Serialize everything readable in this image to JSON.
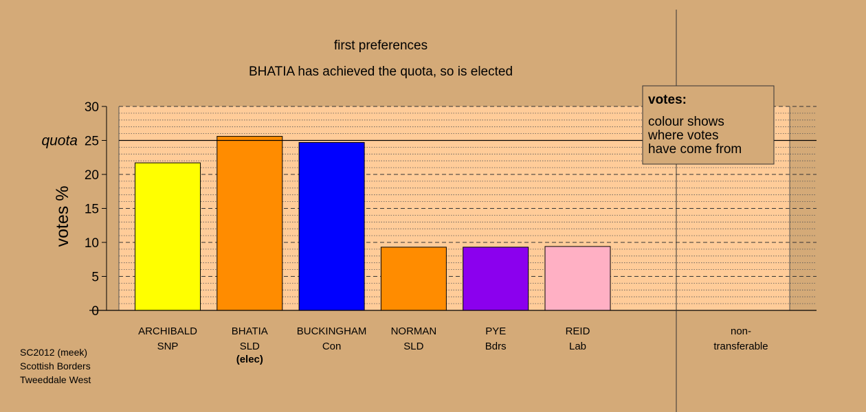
{
  "chart_data": {
    "type": "bar",
    "title": "first preferences",
    "subtitle": "BHATIA has achieved the quota, so is elected",
    "ylabel": "votes %",
    "ylim": [
      0,
      30
    ],
    "yticks": [
      "0",
      "5",
      "10",
      "15",
      "20",
      "25",
      "30"
    ],
    "quota": 25,
    "quota_label": "quota",
    "grid": true,
    "candidates": [
      {
        "name": "ARCHIBALD",
        "party": "SNP",
        "note": "",
        "value": 21.7,
        "color": "#ffff00"
      },
      {
        "name": "BHATIA",
        "party": "SLD",
        "note": "(elec)",
        "value": 25.6,
        "color": "#ff8c00"
      },
      {
        "name": "BUCKINGHAM",
        "party": "Con",
        "note": "",
        "value": 24.7,
        "color": "#0000ff"
      },
      {
        "name": "NORMAN",
        "party": "SLD",
        "note": "",
        "value": 9.3,
        "color": "#ff8c00"
      },
      {
        "name": "PYE",
        "party": "Bdrs",
        "note": "",
        "value": 9.3,
        "color": "#8b00ee"
      },
      {
        "name": "REID",
        "party": "Lab",
        "note": "",
        "value": 9.4,
        "color": "#ffb0c4"
      }
    ],
    "nontransferable": {
      "line1": "non-",
      "line2": "transferable",
      "value": 0
    },
    "legend": {
      "position": "top-right",
      "title": "votes:",
      "lines": [
        "colour shows",
        "where votes",
        "have come from"
      ]
    }
  },
  "footer": {
    "line1": "SC2012 (meek)",
    "line2": "Scottish Borders",
    "line3": "Tweeddale West"
  },
  "colors": {
    "background": "#d4aa78",
    "plot_area": "#ffcc99"
  }
}
